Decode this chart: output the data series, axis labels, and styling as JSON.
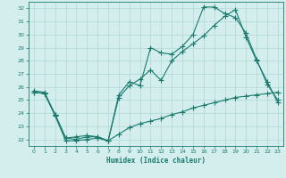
{
  "xlabel": "Humidex (Indice chaleur)",
  "bg_color": "#d4eeee",
  "line_color": "#1a7a6e",
  "grid_color": "#b0d8d8",
  "xlim": [
    -0.5,
    23.5
  ],
  "ylim": [
    21.5,
    32.5
  ],
  "xticks": [
    0,
    1,
    2,
    3,
    4,
    5,
    6,
    7,
    8,
    9,
    10,
    11,
    12,
    13,
    14,
    15,
    16,
    17,
    18,
    19,
    20,
    21,
    22,
    23
  ],
  "yticks": [
    22,
    23,
    24,
    25,
    26,
    27,
    28,
    29,
    30,
    31,
    32
  ],
  "line1_x": [
    0,
    1,
    2,
    3,
    4,
    5,
    6,
    7,
    8,
    9,
    10,
    11,
    12,
    13,
    14,
    15,
    16,
    17,
    18,
    19,
    20,
    21,
    22,
    23
  ],
  "line1_y": [
    25.7,
    25.6,
    23.9,
    22.1,
    22.2,
    22.3,
    22.2,
    21.9,
    25.4,
    26.4,
    26.1,
    29.0,
    28.6,
    28.5,
    29.1,
    30.0,
    32.1,
    32.1,
    31.6,
    31.3,
    30.1,
    28.1,
    26.2,
    25.0
  ],
  "line2_x": [
    0,
    1,
    2,
    3,
    4,
    5,
    6,
    7,
    8,
    9,
    10,
    11,
    12,
    13,
    14,
    15,
    16,
    17,
    18,
    19,
    20,
    21,
    22,
    23
  ],
  "line2_y": [
    25.6,
    25.5,
    23.9,
    22.1,
    22.0,
    22.2,
    22.2,
    21.9,
    25.2,
    26.1,
    26.6,
    27.3,
    26.5,
    28.0,
    28.7,
    29.3,
    29.9,
    30.7,
    31.4,
    31.9,
    29.8,
    28.0,
    26.4,
    24.8
  ],
  "line3_x": [
    0,
    1,
    2,
    3,
    4,
    5,
    6,
    7,
    8,
    9,
    10,
    11,
    12,
    13,
    14,
    15,
    16,
    17,
    18,
    19,
    20,
    21,
    22,
    23
  ],
  "line3_y": [
    25.6,
    25.5,
    23.8,
    21.9,
    21.9,
    22.0,
    22.1,
    21.9,
    22.4,
    22.9,
    23.2,
    23.4,
    23.6,
    23.9,
    24.1,
    24.4,
    24.6,
    24.8,
    25.0,
    25.2,
    25.3,
    25.4,
    25.5,
    25.6
  ]
}
